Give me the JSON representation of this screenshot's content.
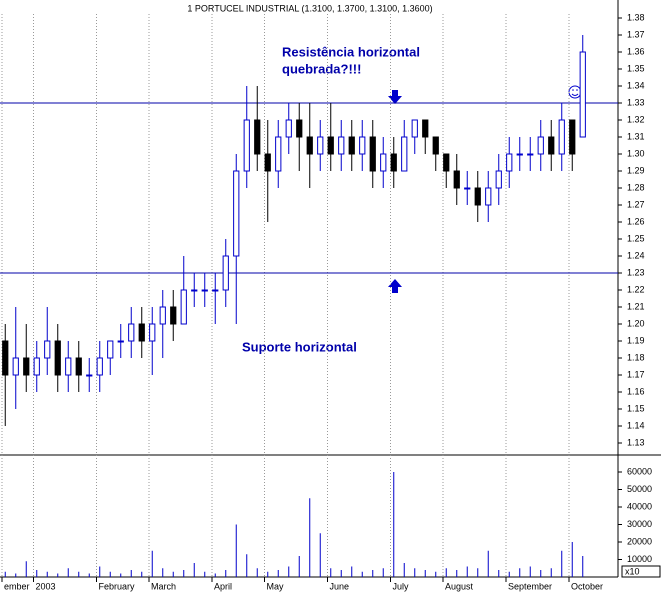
{
  "chart_data": {
    "type": "candlestick",
    "title": "1 PORTUCEL INDUSTRIAL (1.3100, 1.3700, 1.3100, 1.3600)",
    "categories": [
      "ember",
      null,
      null,
      "2003",
      null,
      null,
      null,
      null,
      null,
      "February",
      null,
      null,
      null,
      null,
      "March",
      null,
      null,
      null,
      null,
      null,
      "April",
      null,
      null,
      null,
      null,
      "May",
      null,
      null,
      null,
      null,
      null,
      "June",
      null,
      null,
      null,
      null,
      null,
      "July",
      null,
      null,
      null,
      null,
      "August",
      null,
      null,
      null,
      null,
      null,
      "September",
      null,
      null,
      null,
      null,
      null,
      "October",
      null
    ],
    "open": [
      1.19,
      1.17,
      1.18,
      1.17,
      1.18,
      1.19,
      1.17,
      1.18,
      1.17,
      1.17,
      1.18,
      1.19,
      1.19,
      1.2,
      1.19,
      1.2,
      1.21,
      1.2,
      1.22,
      1.22,
      1.22,
      1.22,
      1.24,
      1.29,
      1.32,
      1.3,
      1.29,
      1.31,
      1.32,
      1.31,
      1.3,
      1.31,
      1.3,
      1.31,
      1.3,
      1.31,
      1.29,
      1.3,
      1.29,
      1.31,
      1.32,
      1.31,
      1.3,
      1.29,
      1.28,
      1.28,
      1.27,
      1.28,
      1.29,
      1.3,
      1.3,
      1.3,
      1.31,
      1.3,
      1.32,
      1.31
    ],
    "high": [
      1.2,
      1.21,
      1.2,
      1.19,
      1.21,
      1.2,
      1.19,
      1.19,
      1.18,
      1.19,
      1.19,
      1.2,
      1.21,
      1.21,
      1.21,
      1.22,
      1.22,
      1.24,
      1.23,
      1.23,
      1.23,
      1.25,
      1.3,
      1.34,
      1.34,
      1.32,
      1.32,
      1.33,
      1.33,
      1.33,
      1.32,
      1.33,
      1.32,
      1.32,
      1.32,
      1.32,
      1.31,
      1.31,
      1.32,
      1.32,
      1.32,
      1.31,
      1.3,
      1.3,
      1.29,
      1.29,
      1.29,
      1.3,
      1.31,
      1.31,
      1.31,
      1.32,
      1.32,
      1.33,
      1.32,
      1.37
    ],
    "low": [
      1.14,
      1.15,
      1.16,
      1.16,
      1.17,
      1.16,
      1.16,
      1.16,
      1.16,
      1.16,
      1.17,
      1.18,
      1.18,
      1.18,
      1.17,
      1.18,
      1.19,
      1.2,
      1.21,
      1.21,
      1.2,
      1.21,
      1.2,
      1.28,
      1.29,
      1.26,
      1.28,
      1.3,
      1.29,
      1.28,
      1.29,
      1.29,
      1.29,
      1.29,
      1.29,
      1.28,
      1.28,
      1.28,
      1.29,
      1.3,
      1.3,
      1.29,
      1.28,
      1.27,
      1.27,
      1.26,
      1.26,
      1.27,
      1.28,
      1.29,
      1.29,
      1.29,
      1.29,
      1.29,
      1.29,
      1.31
    ],
    "close": [
      1.17,
      1.18,
      1.17,
      1.18,
      1.19,
      1.17,
      1.18,
      1.17,
      1.17,
      1.18,
      1.19,
      1.19,
      1.2,
      1.19,
      1.2,
      1.21,
      1.2,
      1.22,
      1.22,
      1.22,
      1.22,
      1.24,
      1.29,
      1.32,
      1.3,
      1.29,
      1.31,
      1.32,
      1.31,
      1.3,
      1.31,
      1.3,
      1.31,
      1.3,
      1.31,
      1.29,
      1.3,
      1.29,
      1.31,
      1.32,
      1.31,
      1.3,
      1.29,
      1.28,
      1.28,
      1.27,
      1.28,
      1.29,
      1.3,
      1.3,
      1.3,
      1.31,
      1.3,
      1.32,
      1.3,
      1.36
    ],
    "up_color": "#0000cc",
    "down_color": "#000000",
    "ylim": [
      1.13,
      1.38
    ],
    "yticks": [
      1.13,
      1.14,
      1.15,
      1.16,
      1.17,
      1.18,
      1.19,
      {
        "value": 1.2,
        "label": "1.20"
      },
      1.21,
      1.22,
      1.23,
      1.24,
      1.25,
      1.26,
      1.27,
      1.28,
      1.29,
      {
        "value": 1.3,
        "label": "1.30"
      },
      1.31,
      1.32,
      1.33,
      1.34,
      1.35,
      1.36,
      1.37,
      1.38
    ],
    "hlines": [
      1.33,
      1.23
    ],
    "hline_color": "#0000aa",
    "annotations": [
      "Resistência horizontal",
      "quebrada?!!!",
      "Suporte horizontal"
    ],
    "volume": {
      "values": [
        3000,
        2000,
        9000,
        4000,
        3000,
        2000,
        5000,
        3000,
        2000,
        6000,
        3000,
        2000,
        4000,
        3000,
        15000,
        5000,
        3000,
        4000,
        8000,
        3000,
        2000,
        4000,
        30000,
        13000,
        5000,
        3000,
        4000,
        6000,
        12000,
        45000,
        25000,
        5000,
        4000,
        6000,
        3000,
        4000,
        5000,
        60000,
        8000,
        5000,
        4000,
        3000,
        5000,
        4000,
        6000,
        5000,
        15000,
        4000,
        3000,
        5000,
        6000,
        4000,
        5000,
        15000,
        20000,
        12000
      ],
      "color": "#0000cc",
      "ylim": [
        0,
        60000
      ],
      "yticks": [
        10000,
        20000,
        30000,
        40000,
        50000,
        60000
      ],
      "unit_label": "x10"
    }
  }
}
